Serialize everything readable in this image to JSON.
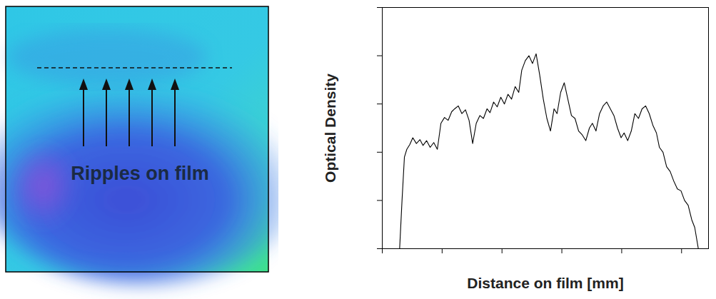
{
  "figure_panel": {
    "annotation": "Ripples on film"
  },
  "chart_data": {
    "type": "line",
    "x_label": "Distance on film [mm]",
    "y_label": "Optical Density",
    "xlim": [
      0,
      5.45
    ],
    "xticks": [
      0,
      1,
      2,
      3,
      4,
      5
    ],
    "ylim": [
      0,
      2.5
    ],
    "yticks": [
      0,
      0.5,
      1,
      1.5,
      2,
      2.5
    ],
    "tick_labels": false,
    "grid": false,
    "color": "#000000",
    "x": [
      0.29,
      0.33,
      0.37,
      0.41,
      0.46,
      0.51,
      0.57,
      0.63,
      0.68,
      0.74,
      0.8,
      0.86,
      0.92,
      0.98,
      1.04,
      1.1,
      1.16,
      1.21,
      1.27,
      1.33,
      1.39,
      1.45,
      1.51,
      1.57,
      1.63,
      1.69,
      1.75,
      1.8,
      1.86,
      1.92,
      1.98,
      2.04,
      2.1,
      2.16,
      2.22,
      2.28,
      2.33,
      2.39,
      2.45,
      2.51,
      2.57,
      2.63,
      2.69,
      2.75,
      2.81,
      2.87,
      2.92,
      2.98,
      3.04,
      3.1,
      3.16,
      3.22,
      3.28,
      3.34,
      3.4,
      3.46,
      3.51,
      3.57,
      3.63,
      3.69,
      3.75,
      3.81,
      3.87,
      3.93,
      3.99,
      4.04,
      4.1,
      4.16,
      4.22,
      4.28,
      4.34,
      4.4,
      4.46,
      4.52,
      4.58,
      4.63,
      4.69,
      4.75,
      4.81,
      4.87,
      4.93,
      4.99,
      5.05,
      5.11,
      5.17,
      5.22,
      5.28
    ],
    "values": [
      0.0,
      0.5,
      0.95,
      1.03,
      1.08,
      1.15,
      1.09,
      1.13,
      1.07,
      1.12,
      1.05,
      1.1,
      1.03,
      1.3,
      1.36,
      1.33,
      1.42,
      1.45,
      1.48,
      1.4,
      1.44,
      1.33,
      1.09,
      1.3,
      1.38,
      1.35,
      1.45,
      1.41,
      1.52,
      1.47,
      1.57,
      1.5,
      1.6,
      1.55,
      1.68,
      1.62,
      1.85,
      1.95,
      2.0,
      1.92,
      2.02,
      1.8,
      1.55,
      1.35,
      1.22,
      1.45,
      1.4,
      1.62,
      1.72,
      1.55,
      1.38,
      1.35,
      1.22,
      1.18,
      1.12,
      1.25,
      1.3,
      1.22,
      1.4,
      1.48,
      1.52,
      1.45,
      1.38,
      1.25,
      1.15,
      1.2,
      1.12,
      1.22,
      1.4,
      1.35,
      1.45,
      1.48,
      1.4,
      1.28,
      1.2,
      1.05,
      1.0,
      0.85,
      0.8,
      0.7,
      0.62,
      0.6,
      0.5,
      0.45,
      0.3,
      0.22,
      0.0
    ]
  }
}
